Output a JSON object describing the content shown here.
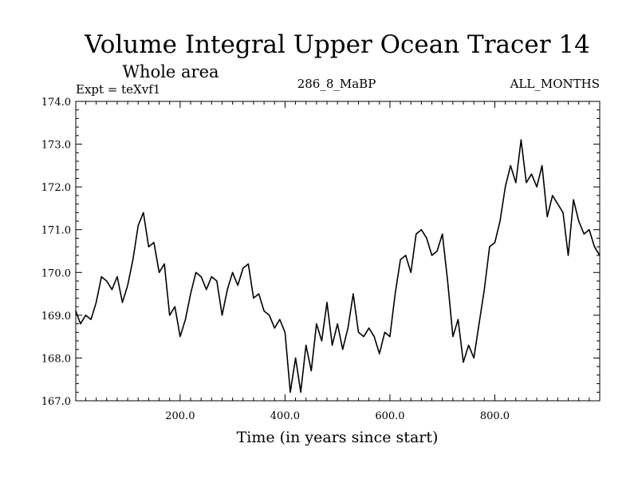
{
  "chart_data": {
    "type": "line",
    "title": "Volume Integral Upper Ocean Tracer 14",
    "subtitle": "Whole area",
    "experiment_label": "Expt = teXvf1",
    "run_label": "286_8_MaBP",
    "months_label": "ALL_MONTHS",
    "xlabel": "Time (in years since start)",
    "ylabel": "",
    "xlim": [
      1,
      1000
    ],
    "ylim": [
      167.0,
      174.0
    ],
    "x_ticks": [
      {
        "value": 200,
        "label": "200.0"
      },
      {
        "value": 400,
        "label": "400.0"
      },
      {
        "value": 600,
        "label": "600.0"
      },
      {
        "value": 800,
        "label": "800.0"
      }
    ],
    "y_ticks": [
      {
        "value": 167,
        "label": "167.0"
      },
      {
        "value": 168,
        "label": "168.0"
      },
      {
        "value": 169,
        "label": "169.0"
      },
      {
        "value": 170,
        "label": "170.0"
      },
      {
        "value": 171,
        "label": "171.0"
      },
      {
        "value": 172,
        "label": "172.0"
      },
      {
        "value": 173,
        "label": "173.0"
      },
      {
        "value": 174,
        "label": "174.0"
      }
    ],
    "grid": false,
    "line_color": "#000000",
    "series": [
      {
        "name": "Tracer 14",
        "x": [
          1,
          10,
          20,
          30,
          40,
          50,
          60,
          70,
          80,
          90,
          100,
          110,
          120,
          130,
          140,
          150,
          160,
          170,
          180,
          190,
          200,
          210,
          220,
          230,
          240,
          250,
          260,
          270,
          280,
          290,
          300,
          310,
          320,
          330,
          340,
          350,
          360,
          370,
          380,
          390,
          400,
          410,
          420,
          430,
          440,
          450,
          460,
          470,
          480,
          490,
          500,
          510,
          520,
          530,
          540,
          550,
          560,
          570,
          580,
          590,
          600,
          610,
          620,
          630,
          640,
          650,
          660,
          670,
          680,
          690,
          700,
          710,
          720,
          730,
          740,
          750,
          760,
          770,
          780,
          790,
          800,
          810,
          820,
          830,
          840,
          850,
          860,
          870,
          880,
          890,
          900,
          910,
          920,
          930,
          940,
          950,
          960,
          970,
          980,
          990,
          1000
        ],
        "values": [
          169.1,
          168.8,
          169.0,
          168.9,
          169.3,
          169.9,
          169.8,
          169.6,
          169.9,
          169.3,
          169.7,
          170.3,
          171.1,
          171.4,
          170.6,
          170.7,
          170.0,
          170.2,
          169.0,
          169.2,
          168.5,
          168.9,
          169.5,
          170.0,
          169.9,
          169.6,
          169.9,
          169.8,
          169.0,
          169.6,
          170.0,
          169.7,
          170.1,
          170.2,
          169.4,
          169.5,
          169.1,
          169.0,
          168.7,
          168.9,
          168.6,
          167.2,
          168.0,
          167.2,
          168.3,
          167.7,
          168.8,
          168.4,
          169.3,
          168.3,
          168.8,
          168.2,
          168.7,
          169.5,
          168.6,
          168.5,
          168.7,
          168.5,
          168.1,
          168.6,
          168.5,
          169.5,
          170.3,
          170.4,
          170.0,
          170.9,
          171.0,
          170.8,
          170.4,
          170.5,
          170.9,
          169.8,
          168.5,
          168.9,
          167.9,
          168.3,
          168.0,
          168.8,
          169.6,
          170.6,
          170.7,
          171.2,
          172.0,
          172.5,
          172.1,
          173.1,
          172.1,
          172.3,
          172.0,
          172.5,
          171.3,
          171.8,
          171.6,
          171.4,
          170.4,
          171.7,
          171.2,
          170.9,
          171.0,
          170.6,
          170.4
        ]
      }
    ]
  }
}
